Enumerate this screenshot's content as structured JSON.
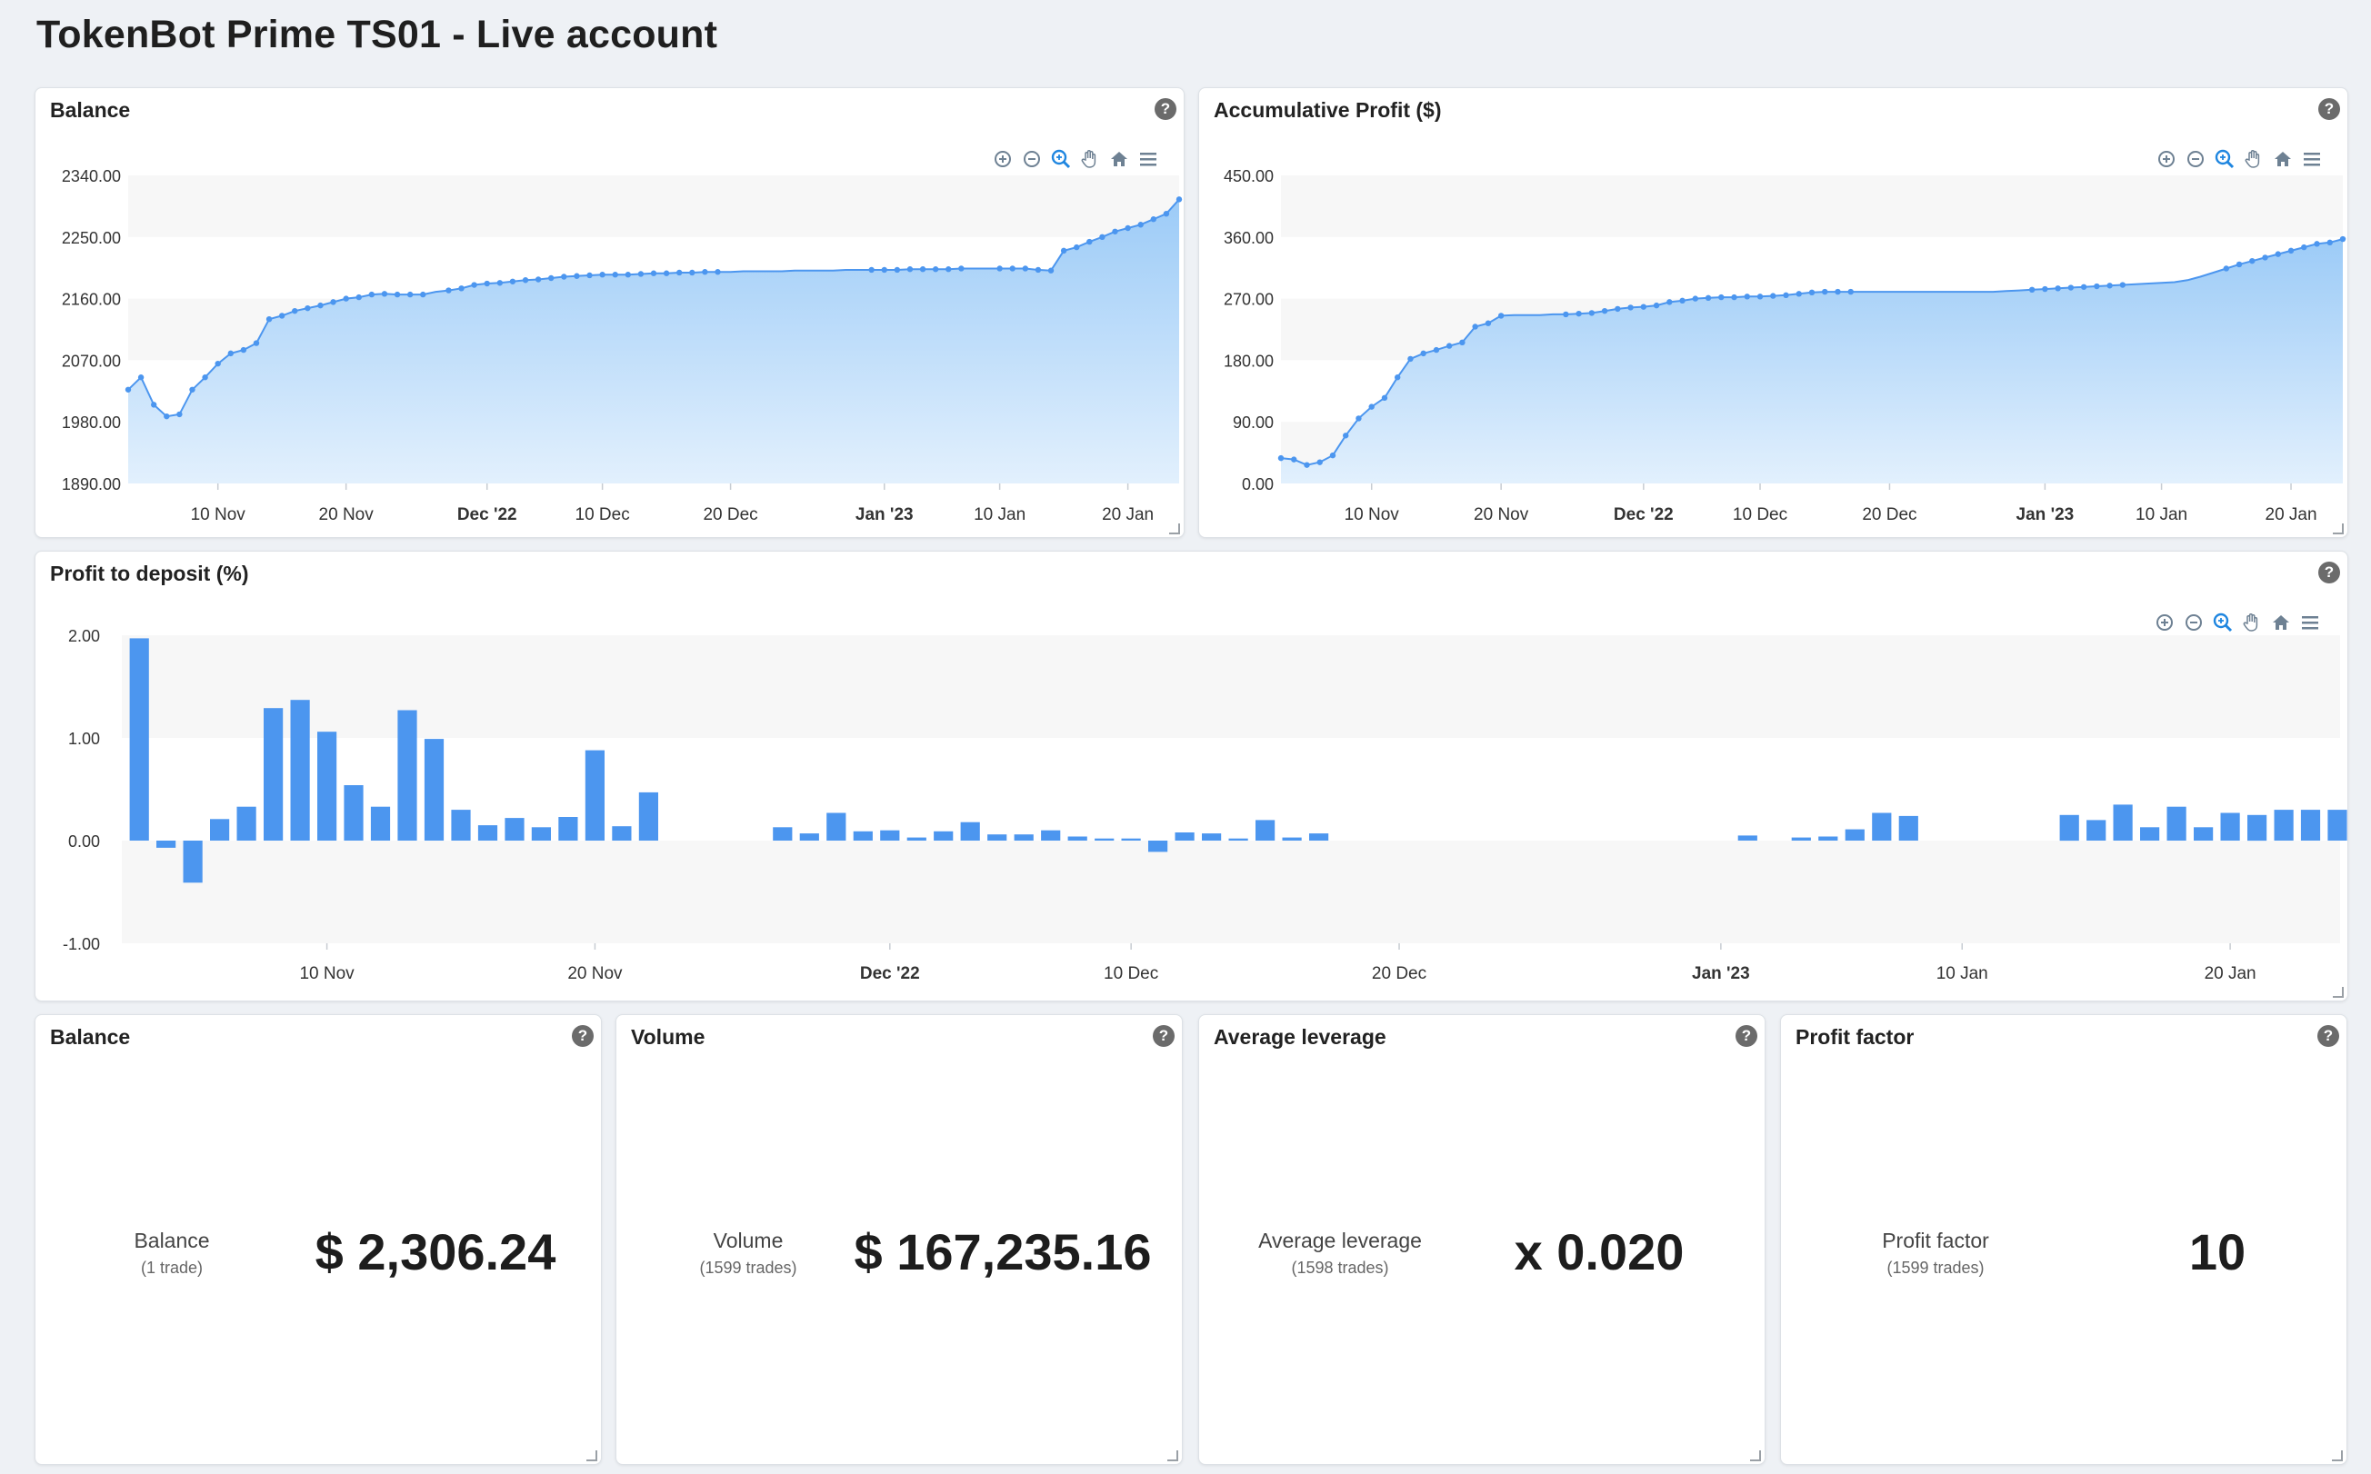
{
  "page": {
    "title": "TokenBot Prime TS01 - Live account"
  },
  "icons": {
    "help": "help-icon",
    "zoom_in": "zoom-in-icon",
    "zoom_out": "zoom-out-icon",
    "selection_zoom": "magnifier-icon",
    "pan": "hand-pan-icon",
    "reset": "home-icon",
    "menu": "hamburger-menu-icon",
    "resize": "resize-handle-icon"
  },
  "colors": {
    "accent": "#4c96ef",
    "area_top": "#9ccbf7",
    "area_bottom": "#e2f0fd",
    "band": "#f7f7f7"
  },
  "balance_chart": {
    "title": "Balance",
    "chart_data": {
      "type": "area",
      "title": "Balance",
      "y_ticks": [
        "2340.00",
        "2250.00",
        "2160.00",
        "2070.00",
        "1980.00",
        "1890.00"
      ],
      "ylim": [
        1890,
        2340
      ],
      "x_ticks": [
        {
          "label": "10 Nov",
          "x": 10,
          "bold": false
        },
        {
          "label": "20 Nov",
          "x": 20,
          "bold": false
        },
        {
          "label": "Dec '22",
          "x": 31,
          "bold": true
        },
        {
          "label": "10 Dec",
          "x": 40,
          "bold": false
        },
        {
          "label": "20 Dec",
          "x": 50,
          "bold": false
        },
        {
          "label": "Jan '23",
          "x": 62,
          "bold": true
        },
        {
          "label": "10 Jan",
          "x": 71,
          "bold": false
        },
        {
          "label": "20 Jan",
          "x": 81,
          "bold": false
        }
      ],
      "xlim": [
        3,
        85
      ],
      "x": [
        3,
        4,
        5,
        6,
        7,
        8,
        9,
        10,
        11,
        12,
        13,
        14,
        15,
        16,
        17,
        18,
        19,
        20,
        21,
        22,
        23,
        24,
        25,
        26,
        27,
        28,
        29,
        30,
        31,
        32,
        33,
        34,
        35,
        36,
        37,
        38,
        39,
        40,
        41,
        42,
        43,
        44,
        45,
        46,
        47,
        48,
        49,
        50,
        51,
        52,
        53,
        54,
        55,
        56,
        57,
        58,
        59,
        60,
        61,
        62,
        63,
        64,
        65,
        66,
        67,
        68,
        69,
        70,
        71,
        72,
        73,
        74,
        75,
        76,
        77,
        78,
        79,
        80,
        81,
        82,
        83,
        84,
        85
      ],
      "values": [
        2027,
        2045,
        2005,
        1988,
        1991,
        2027,
        2045,
        2065,
        2080,
        2085,
        2095,
        2130,
        2135,
        2142,
        2146,
        2150,
        2155,
        2160,
        2162,
        2166,
        2167,
        2166,
        2166,
        2166,
        2170,
        2172,
        2175,
        2180,
        2182,
        2183,
        2185,
        2187,
        2188,
        2190,
        2192,
        2193,
        2194,
        2195,
        2195,
        2195,
        2196,
        2197,
        2197,
        2198,
        2198,
        2199,
        2199,
        2199,
        2200,
        2200,
        2200,
        2200,
        2201,
        2201,
        2201,
        2201,
        2202,
        2202,
        2202,
        2202,
        2202,
        2203,
        2203,
        2203,
        2203,
        2204,
        2204,
        2204,
        2204,
        2204,
        2204,
        2202,
        2201,
        2230,
        2235,
        2243,
        2250,
        2258,
        2263,
        2268,
        2276,
        2284,
        2305
      ],
      "point_days": [
        3,
        4,
        5,
        6,
        7,
        8,
        9,
        10,
        11,
        12,
        13,
        14,
        15,
        16,
        17,
        18,
        19,
        20,
        21,
        22,
        23,
        24,
        25,
        26,
        28,
        29,
        30,
        31,
        32,
        33,
        34,
        35,
        36,
        37,
        38,
        39,
        40,
        41,
        42,
        43,
        44,
        45,
        46,
        47,
        48,
        49,
        61,
        62,
        63,
        64,
        65,
        66,
        67,
        68,
        71,
        72,
        73,
        74,
        75,
        76,
        77,
        78,
        79,
        80,
        81,
        82,
        83,
        84,
        85
      ],
      "grid": false
    }
  },
  "profit_chart": {
    "title": "Accumulative Profit ($)",
    "chart_data": {
      "type": "area",
      "title": "Accumulative Profit ($)",
      "y_ticks": [
        "450.00",
        "360.00",
        "270.00",
        "180.00",
        "90.00",
        "0.00"
      ],
      "ylim": [
        0,
        450
      ],
      "x_ticks": [
        {
          "label": "10 Nov",
          "x": 10,
          "bold": false
        },
        {
          "label": "20 Nov",
          "x": 20,
          "bold": false
        },
        {
          "label": "Dec '22",
          "x": 31,
          "bold": true
        },
        {
          "label": "10 Dec",
          "x": 40,
          "bold": false
        },
        {
          "label": "20 Dec",
          "x": 50,
          "bold": false
        },
        {
          "label": "Jan '23",
          "x": 62,
          "bold": true
        },
        {
          "label": "10 Jan",
          "x": 71,
          "bold": false
        },
        {
          "label": "20 Jan",
          "x": 81,
          "bold": false
        }
      ],
      "xlim": [
        3,
        85
      ],
      "x": [
        3,
        4,
        5,
        6,
        7,
        8,
        9,
        10,
        11,
        12,
        13,
        14,
        15,
        16,
        17,
        18,
        19,
        20,
        21,
        22,
        23,
        24,
        25,
        26,
        27,
        28,
        29,
        30,
        31,
        32,
        33,
        34,
        35,
        36,
        37,
        38,
        39,
        40,
        41,
        42,
        43,
        44,
        45,
        46,
        47,
        48,
        49,
        50,
        51,
        52,
        53,
        54,
        55,
        56,
        57,
        58,
        59,
        60,
        61,
        62,
        63,
        64,
        65,
        66,
        67,
        68,
        69,
        70,
        71,
        72,
        73,
        74,
        75,
        76,
        77,
        78,
        79,
        80,
        81,
        82,
        83,
        84,
        85
      ],
      "values": [
        37,
        35,
        27,
        31,
        41,
        70,
        95,
        112,
        125,
        155,
        182,
        190,
        195,
        201,
        206,
        229,
        234,
        245,
        246,
        246,
        246,
        247,
        247,
        248,
        249,
        252,
        255,
        257,
        258,
        260,
        265,
        267,
        270,
        271,
        272,
        272,
        273,
        273,
        274,
        275,
        277,
        279,
        280,
        280,
        280,
        280,
        280,
        280,
        280,
        280,
        280,
        280,
        280,
        280,
        280,
        280,
        281,
        282,
        283,
        284,
        285,
        286,
        287,
        288,
        289,
        290,
        291,
        292,
        293,
        294,
        297,
        302,
        308,
        314,
        320,
        325,
        330,
        335,
        340,
        345,
        350,
        352,
        357
      ],
      "point_days": [
        3,
        4,
        5,
        6,
        7,
        8,
        9,
        10,
        11,
        12,
        13,
        14,
        15,
        16,
        17,
        18,
        19,
        20,
        25,
        26,
        27,
        28,
        29,
        30,
        31,
        32,
        33,
        34,
        35,
        36,
        37,
        38,
        39,
        40,
        41,
        42,
        43,
        44,
        45,
        46,
        47,
        61,
        62,
        63,
        64,
        65,
        66,
        67,
        68,
        76,
        77,
        78,
        79,
        80,
        81,
        82,
        83,
        84,
        85
      ],
      "grid": false
    }
  },
  "deposit_chart": {
    "title": "Profit to deposit (%)",
    "chart_data": {
      "type": "bar",
      "title": "Profit to deposit (%)",
      "y_ticks": [
        "2.00",
        "1.00",
        "0.00",
        "-1.00"
      ],
      "ylim": [
        -1,
        2
      ],
      "x_ticks": [
        {
          "label": "10 Nov",
          "x": 10,
          "bold": false
        },
        {
          "label": "20 Nov",
          "x": 20,
          "bold": false
        },
        {
          "label": "Dec '22",
          "x": 31,
          "bold": true
        },
        {
          "label": "10 Dec",
          "x": 40,
          "bold": false
        },
        {
          "label": "20 Dec",
          "x": 50,
          "bold": false
        },
        {
          "label": "Jan '23",
          "x": 62,
          "bold": true
        },
        {
          "label": "10 Jan",
          "x": 71,
          "bold": false
        },
        {
          "label": "20 Jan",
          "x": 81,
          "bold": false
        }
      ],
      "xlim": [
        2.35,
        85.1
      ],
      "x": [
        3,
        4,
        5,
        6,
        7,
        8,
        9,
        10,
        11,
        12,
        13,
        14,
        15,
        16,
        17,
        18,
        19,
        20,
        21,
        22,
        27,
        28,
        29,
        30,
        31,
        32,
        33,
        34,
        35,
        36,
        37,
        38,
        39,
        40,
        41,
        42,
        43,
        44,
        45,
        46,
        47,
        63,
        65,
        66,
        67,
        68,
        69,
        75,
        76,
        77,
        78,
        79,
        80,
        81,
        82,
        83,
        84,
        85
      ],
      "values": [
        1.97,
        -0.07,
        -0.41,
        0.21,
        0.33,
        1.29,
        1.37,
        1.06,
        0.54,
        0.33,
        1.27,
        0.99,
        0.3,
        0.15,
        0.22,
        0.13,
        0.23,
        0.88,
        0.14,
        0.47,
        0.13,
        0.07,
        0.27,
        0.09,
        0.1,
        0.03,
        0.09,
        0.18,
        0.06,
        0.06,
        0.1,
        0.04,
        0.02,
        0.02,
        -0.11,
        0.08,
        0.07,
        0.02,
        0.2,
        0.03,
        0.07,
        0.05,
        0.03,
        0.04,
        0.11,
        0.27,
        0.24,
        0.25,
        0.2,
        0.35,
        0.13,
        0.33,
        0.13,
        0.27,
        0.25,
        0.3,
        0.3,
        0.3
      ],
      "grid": false
    }
  },
  "kpis": [
    {
      "title": "Balance",
      "label": "Balance",
      "sub": "(1 trade)",
      "value": "$ 2,306.24"
    },
    {
      "title": "Volume",
      "label": "Volume",
      "sub": "(1599 trades)",
      "value": "$ 167,235.16"
    },
    {
      "title": "Average leverage",
      "label": "Average leverage",
      "sub": "(1598 trades)",
      "value": "x 0.020"
    },
    {
      "title": "Profit factor",
      "label": "Profit factor",
      "sub": "(1599 trades)",
      "value": "10"
    }
  ]
}
